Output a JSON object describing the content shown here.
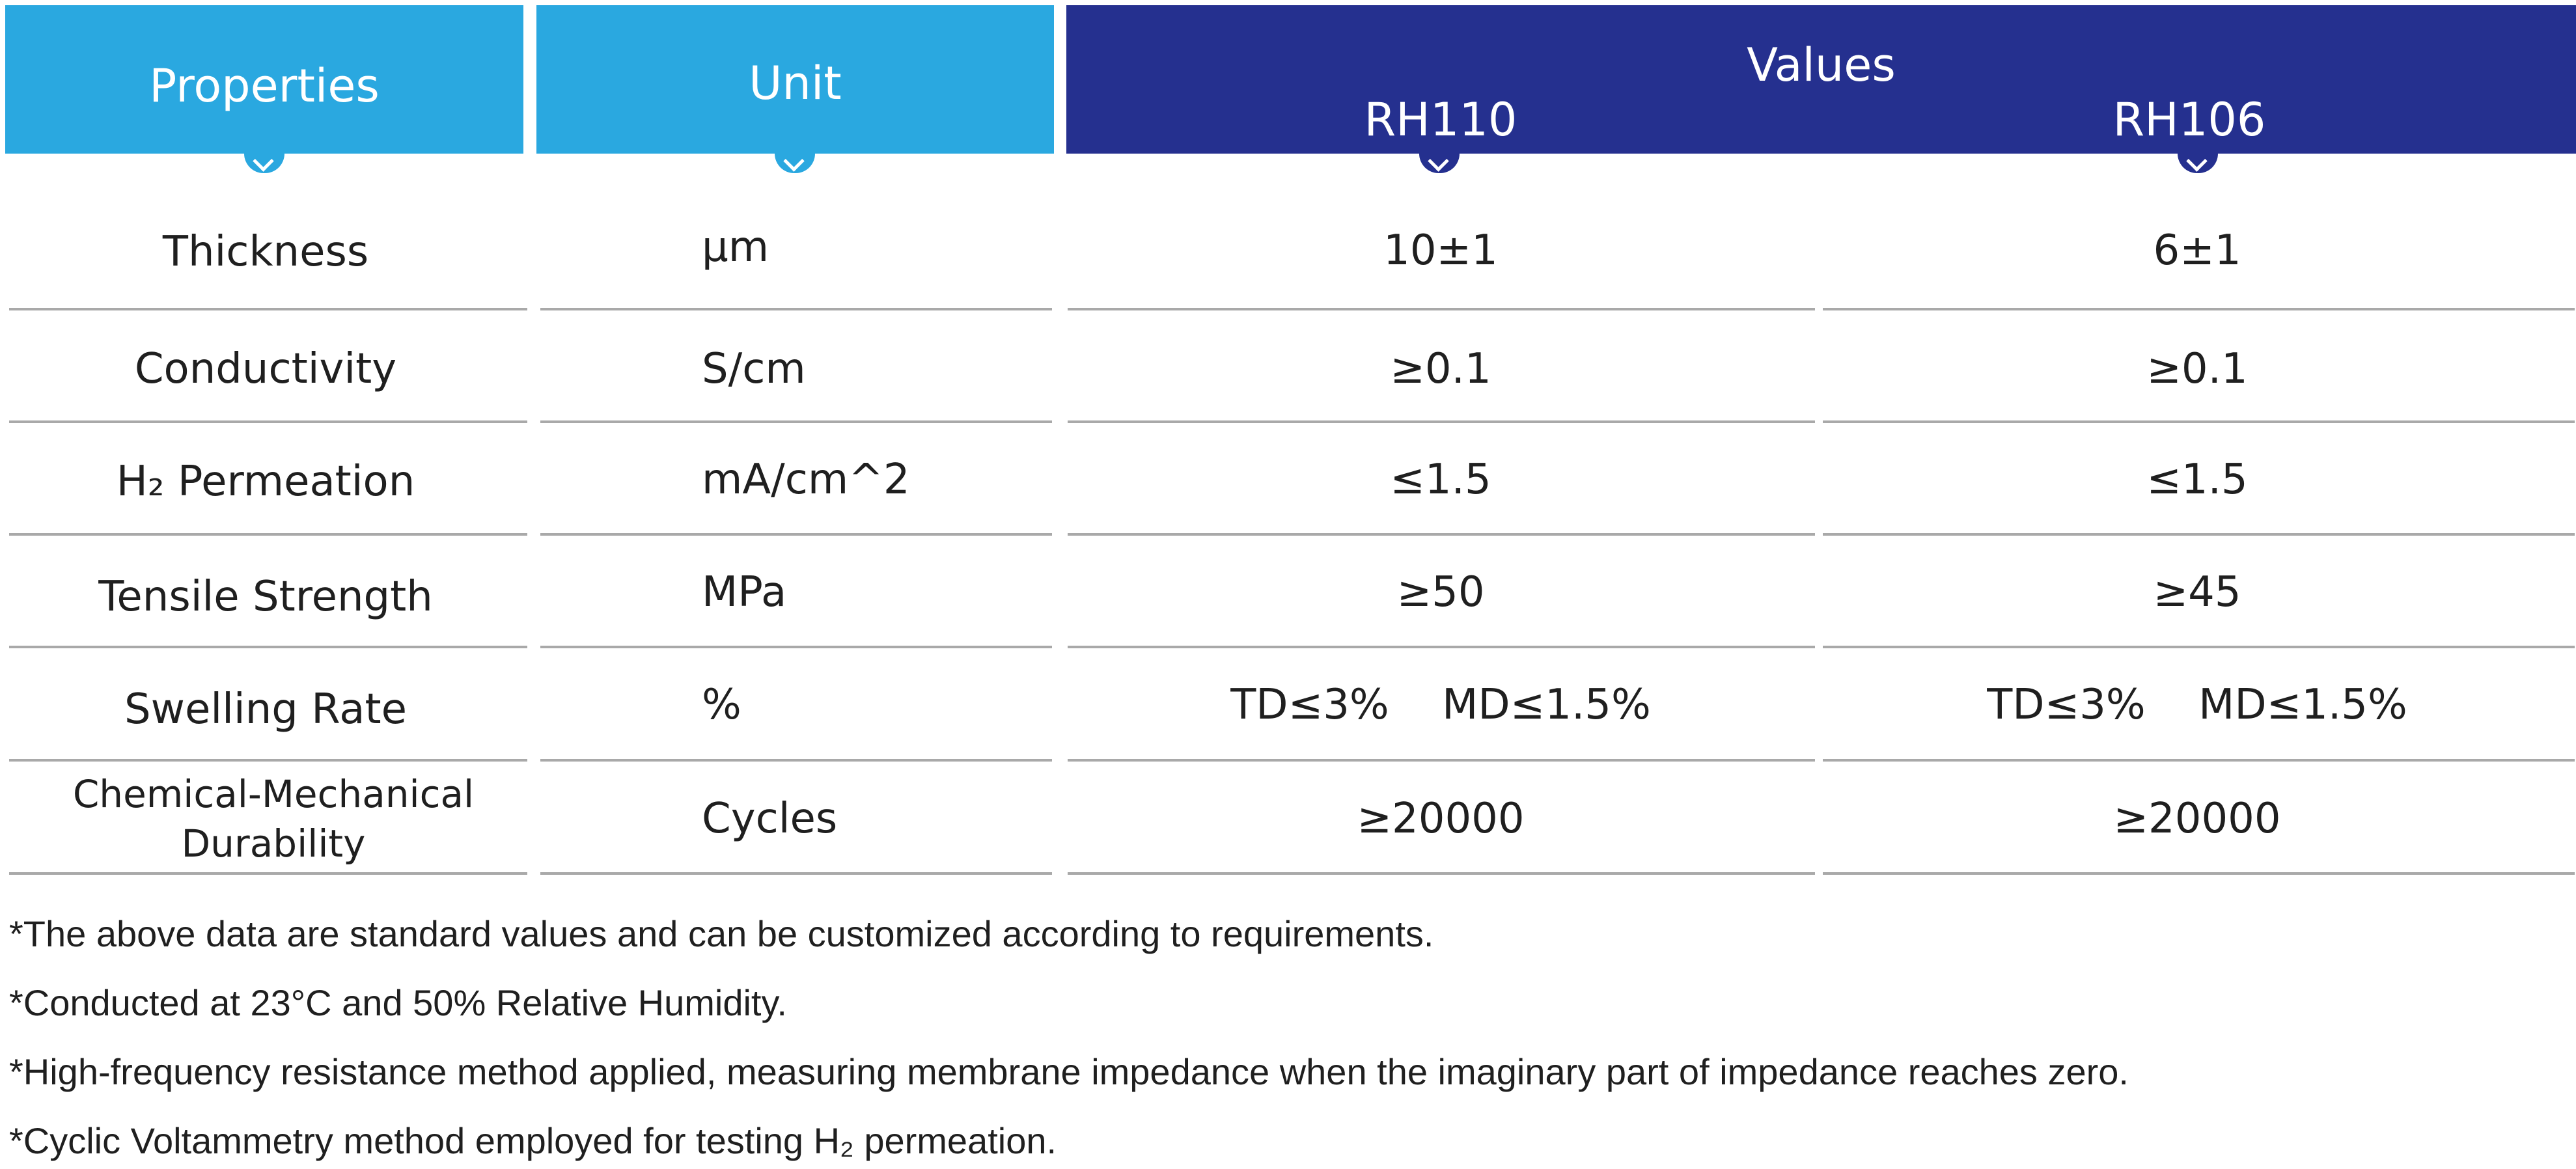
{
  "header": {
    "properties": "Properties",
    "unit": "Unit",
    "values": "Values",
    "models": [
      "RH110",
      "RH106"
    ]
  },
  "rows": [
    {
      "property": "Thickness",
      "unit": "μm",
      "rh110": "10±1",
      "rh106": "6±1"
    },
    {
      "property": "Conductivity",
      "unit": "S/cm",
      "rh110": "≥0.1",
      "rh106": "≥0.1"
    },
    {
      "property": "H₂ Permeation",
      "unit": "mA/cm^2",
      "rh110": "≤1.5",
      "rh106": "≤1.5"
    },
    {
      "property": "Tensile Strength",
      "unit": "MPa",
      "rh110": "≥50",
      "rh106": "≥45"
    },
    {
      "property": "Swelling Rate",
      "unit": "%",
      "rh110": "TD≤3%    MD≤1.5%",
      "rh106": "TD≤3%    MD≤1.5%"
    },
    {
      "property": "Chemical-Mechanical Durability",
      "unit": "Cycles",
      "rh110": "≥20000",
      "rh106": "≥20000"
    }
  ],
  "notes": [
    "*The above data are standard values and can be customized according to requirements.",
    "*Conducted at 23°C and 50% Relative Humidity.",
    "*High-frequency resistance method applied, measuring membrane impedance when the imaginary part of impedance reaches zero.",
    "*Cyclic Voltammetry method employed for testing H₂ permeation."
  ],
  "colors": {
    "header_light": "#2aa8e0",
    "header_dark": "#25308f",
    "rule": "#a9a9a9",
    "text": "#1f1f1f"
  }
}
